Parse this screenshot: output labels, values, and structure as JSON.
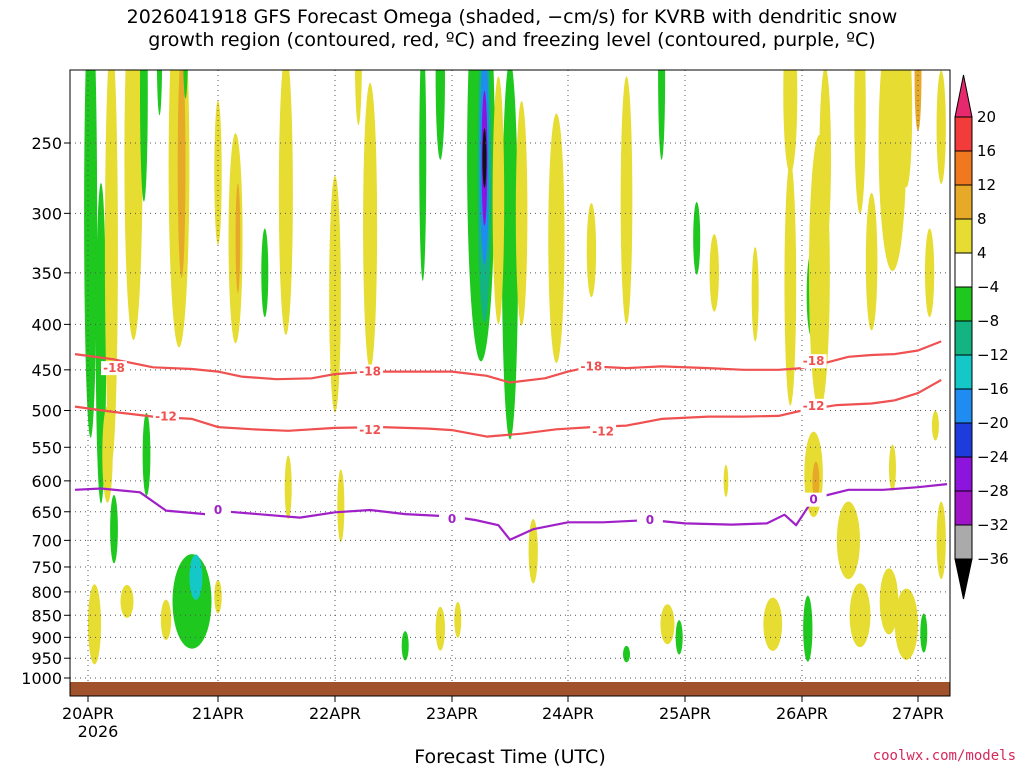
{
  "title": {
    "line1": "2026041918 GFS Forecast Omega (shaded, −cm/s) for KVRB with dendritic snow",
    "line2": "growth region (contoured, red, ºC) and freezing level (contoured, purple, ºC)"
  },
  "xlabel": "Forecast Time (UTC)",
  "credit": "coolwx.com/models",
  "chart_data": {
    "type": "heatmap",
    "x_axis": {
      "ticks": [
        "20APR",
        "21APR",
        "22APR",
        "23APR",
        "24APR",
        "25APR",
        "26APR",
        "27APR"
      ],
      "tick_days": [
        20,
        21,
        22,
        23,
        24,
        25,
        26,
        27
      ],
      "year_label": "2026",
      "range_days": [
        19.9,
        27.25
      ]
    },
    "y_axis": {
      "scale": "log",
      "ticks": [
        250,
        300,
        350,
        400,
        450,
        500,
        550,
        600,
        650,
        700,
        750,
        800,
        850,
        900,
        950,
        1000
      ],
      "range_hpa": [
        200,
        1020
      ]
    },
    "colorbar": {
      "labels": [
        "20",
        "16",
        "12",
        "8",
        "4",
        "−4",
        "−8",
        "−12",
        "−16",
        "−20",
        "−24",
        "−28",
        "−32",
        "−36"
      ],
      "colors": [
        "#f23c3c",
        "#f0781e",
        "#e6aa28",
        "#e6dc32",
        "#ffffff",
        "#1ec81e",
        "#14b482",
        "#14c8c8",
        "#1e8cf0",
        "#1e3cdc",
        "#8c14dc",
        "#a014c8",
        "#aaaaaa"
      ],
      "top_arrow_color": "#e6286e",
      "bottom_arrow_color": "#000000"
    },
    "ground_color": "#a0522d",
    "contours": [
      {
        "label": "-18",
        "color": "#f05050",
        "points": [
          [
            19.9,
            432
          ],
          [
            20.2,
            438
          ],
          [
            20.5,
            447
          ],
          [
            20.8,
            449
          ],
          [
            21.0,
            452
          ],
          [
            21.2,
            458
          ],
          [
            21.5,
            461
          ],
          [
            21.8,
            460
          ],
          [
            22.0,
            455
          ],
          [
            22.3,
            452
          ],
          [
            22.6,
            452
          ],
          [
            23.0,
            452
          ],
          [
            23.3,
            457
          ],
          [
            23.5,
            465
          ],
          [
            23.8,
            460
          ],
          [
            24.0,
            452
          ],
          [
            24.2,
            446
          ],
          [
            24.5,
            448
          ],
          [
            24.8,
            446
          ],
          [
            25.2,
            448
          ],
          [
            25.5,
            450
          ],
          [
            25.8,
            450
          ],
          [
            26.0,
            448
          ],
          [
            26.2,
            442
          ],
          [
            26.4,
            435
          ],
          [
            26.6,
            433
          ],
          [
            26.8,
            432
          ],
          [
            27.0,
            428
          ],
          [
            27.2,
            418
          ]
        ],
        "label_positions": [
          [
            20.2,
            448
          ],
          [
            22.3,
            452
          ],
          [
            24.2,
            446
          ],
          [
            26.1,
            440
          ]
        ]
      },
      {
        "label": "-12",
        "color": "#f05050",
        "points": [
          [
            19.9,
            495
          ],
          [
            20.2,
            502
          ],
          [
            20.5,
            508
          ],
          [
            20.8,
            511
          ],
          [
            21.0,
            522
          ],
          [
            21.3,
            525
          ],
          [
            21.6,
            527
          ],
          [
            22.0,
            523
          ],
          [
            22.4,
            522
          ],
          [
            22.8,
            524
          ],
          [
            23.0,
            526
          ],
          [
            23.3,
            535
          ],
          [
            23.6,
            531
          ],
          [
            23.9,
            525
          ],
          [
            24.2,
            522
          ],
          [
            24.5,
            520
          ],
          [
            24.8,
            511
          ],
          [
            25.2,
            508
          ],
          [
            25.5,
            508
          ],
          [
            25.8,
            507
          ],
          [
            26.0,
            500
          ],
          [
            26.3,
            493
          ],
          [
            26.6,
            491
          ],
          [
            26.8,
            487
          ],
          [
            27.0,
            478
          ],
          [
            27.2,
            462
          ]
        ],
        "label_positions": [
          [
            20.6,
            508
          ],
          [
            22.3,
            526
          ],
          [
            24.3,
            528
          ],
          [
            26.1,
            494
          ]
        ]
      },
      {
        "label": "0",
        "color": "#a020c8",
        "points": [
          [
            19.9,
            614
          ],
          [
            20.1,
            612
          ],
          [
            20.4,
            618
          ],
          [
            20.6,
            648
          ],
          [
            20.9,
            654
          ],
          [
            21.1,
            650
          ],
          [
            21.4,
            655
          ],
          [
            21.7,
            660
          ],
          [
            22.0,
            651
          ],
          [
            22.3,
            647
          ],
          [
            22.6,
            654
          ],
          [
            23.0,
            658
          ],
          [
            23.2,
            664
          ],
          [
            23.4,
            673
          ],
          [
            23.5,
            699
          ],
          [
            23.7,
            680
          ],
          [
            24.0,
            668
          ],
          [
            24.3,
            668
          ],
          [
            24.7,
            664
          ],
          [
            25.0,
            670
          ],
          [
            25.4,
            672
          ],
          [
            25.7,
            670
          ],
          [
            25.85,
            655
          ],
          [
            25.95,
            673
          ],
          [
            26.1,
            628
          ],
          [
            26.4,
            614
          ],
          [
            26.7,
            614
          ],
          [
            27.0,
            610
          ],
          [
            27.25,
            605
          ]
        ],
        "label_positions": [
          [
            21.0,
            647
          ],
          [
            23.0,
            662
          ],
          [
            24.7,
            664
          ],
          [
            26.1,
            630
          ]
        ]
      }
    ]
  }
}
